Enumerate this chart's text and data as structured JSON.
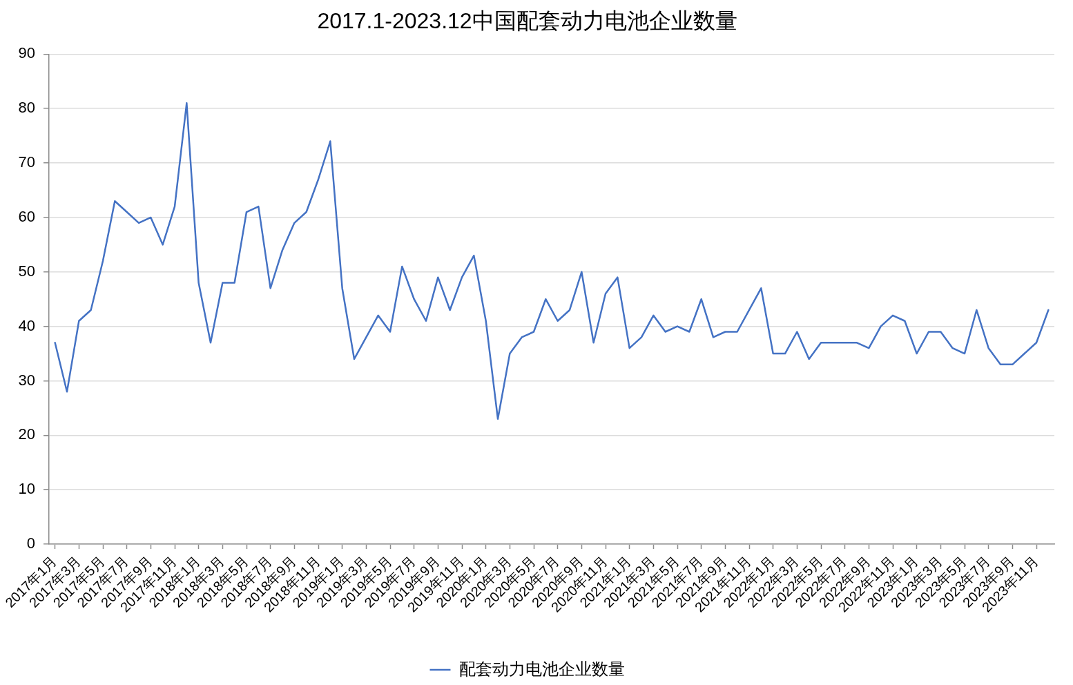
{
  "chart_data": {
    "type": "line",
    "title": "2017.1-2023.12中国配套动力电池企业数量",
    "categories": [
      "2017年1月",
      null,
      "2017年3月",
      null,
      "2017年5月",
      null,
      "2017年7月",
      null,
      "2017年9月",
      null,
      "2017年11月",
      null,
      "2018年1月",
      null,
      "2018年3月",
      null,
      "2018年5月",
      null,
      "2018年7月",
      null,
      "2018年9月",
      null,
      "2018年11月",
      null,
      "2019年1月",
      null,
      "2019年3月",
      null,
      "2019年5月",
      null,
      "2019年7月",
      null,
      "2019年9月",
      null,
      "2019年11月",
      null,
      "2020年1月",
      null,
      "2020年3月",
      null,
      "2020年5月",
      null,
      "2020年7月",
      null,
      "2020年9月",
      null,
      "2020年11月",
      null,
      "2021年1月",
      null,
      "2021年3月",
      null,
      "2021年5月",
      null,
      "2021年7月",
      null,
      "2021年9月",
      null,
      "2021年11月",
      null,
      "2022年1月",
      null,
      "2022年3月",
      null,
      "2022年5月",
      null,
      "2022年7月",
      null,
      "2022年9月",
      null,
      "2022年11月",
      null,
      "2023年1月",
      null,
      "2023年3月",
      null,
      "2023年5月",
      null,
      "2023年7月",
      null,
      "2023年9月",
      null,
      "2023年11月",
      null
    ],
    "series": [
      {
        "name": "配套动力电池企业数量",
        "color": "#4472c4",
        "values": [
          37,
          28,
          41,
          43,
          52,
          63,
          61,
          59,
          60,
          55,
          62,
          81,
          48,
          37,
          48,
          48,
          61,
          62,
          47,
          54,
          59,
          61,
          67,
          74,
          47,
          34,
          38,
          42,
          39,
          51,
          45,
          41,
          49,
          43,
          49,
          53,
          41,
          23,
          35,
          38,
          39,
          45,
          41,
          43,
          50,
          37,
          46,
          49,
          36,
          38,
          42,
          39,
          40,
          39,
          45,
          38,
          39,
          39,
          43,
          47,
          35,
          35,
          39,
          34,
          37,
          37,
          37,
          37,
          36,
          40,
          42,
          41,
          35,
          39,
          39,
          36,
          35,
          43,
          36,
          33,
          33,
          35,
          37,
          43
        ]
      }
    ],
    "ylim": [
      0,
      90
    ],
    "yticks": [
      0,
      10,
      20,
      30,
      40,
      50,
      60,
      70,
      80,
      90
    ],
    "grid": "y",
    "legend": "bottom",
    "marker": "none",
    "line_style": "solid"
  }
}
